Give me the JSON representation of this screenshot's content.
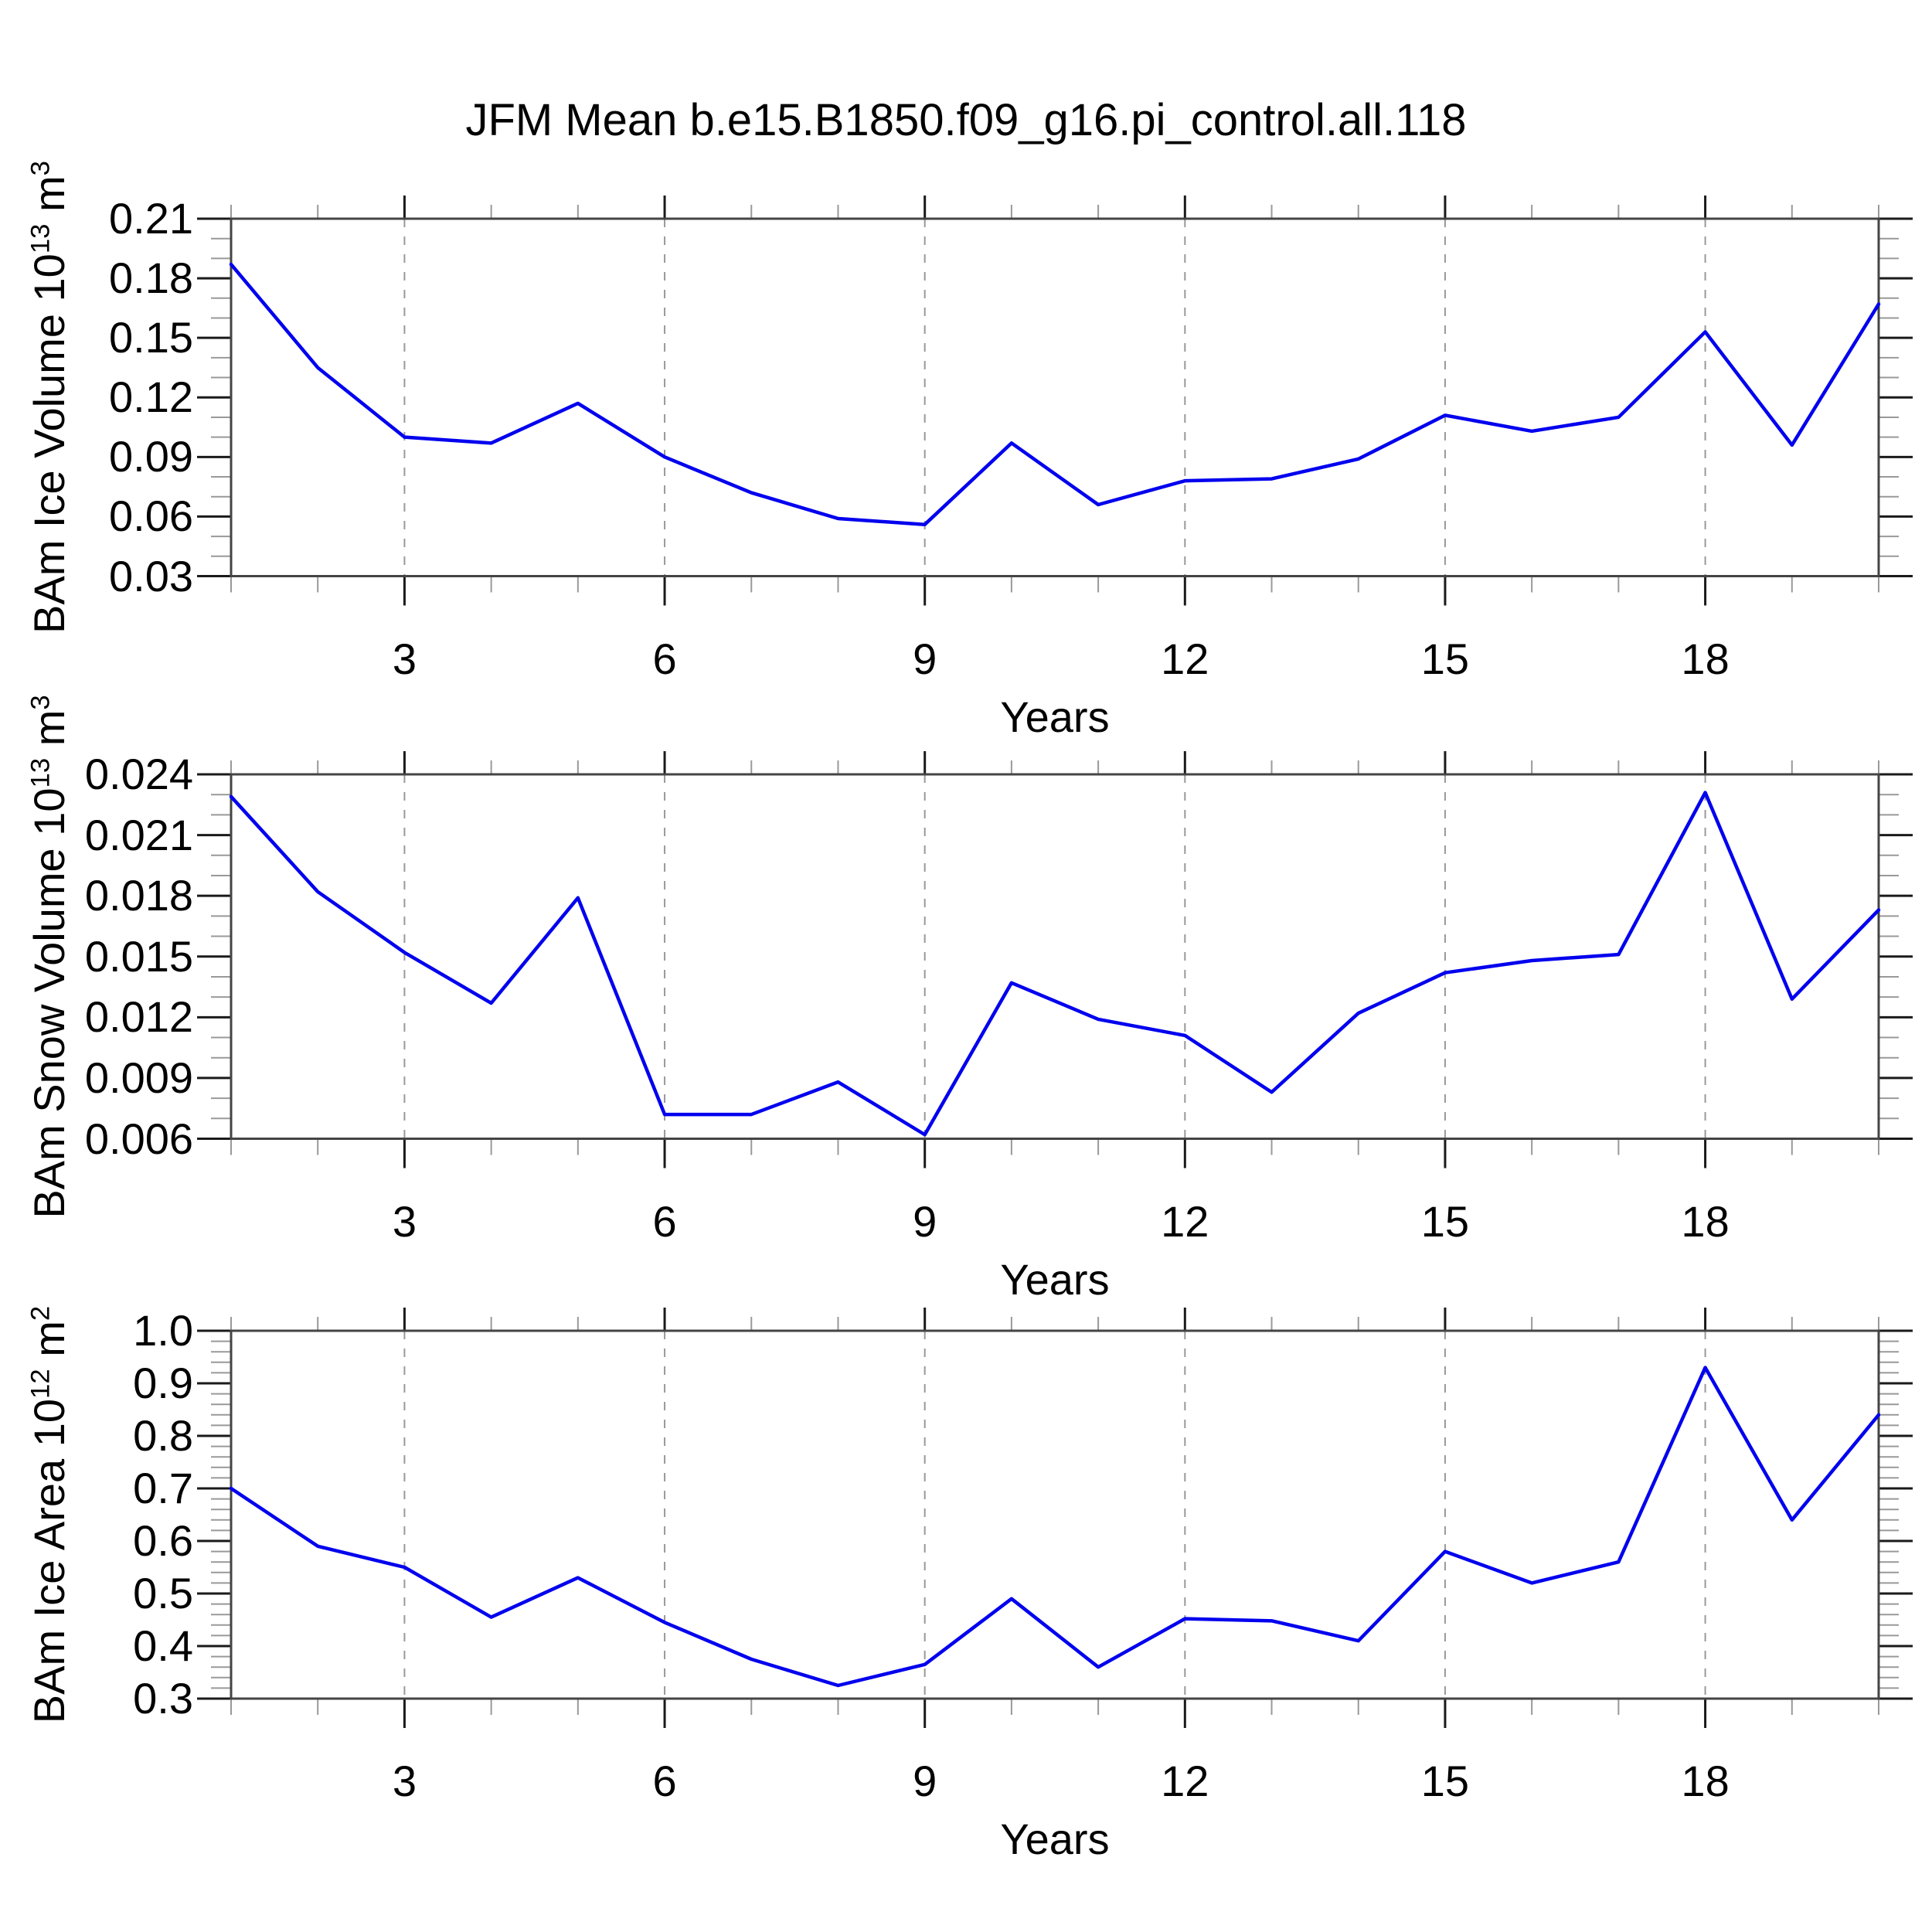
{
  "title": "JFM Mean b.e15.B1850.f09_g16.pi_control.all.118",
  "colors": {
    "line": "#0000ee",
    "frame": "#444444",
    "grid_dashed": "#999999",
    "tick_major": "#1a1a1a",
    "tick_minor": "#999999",
    "text": "#000000",
    "background": "#ffffff"
  },
  "chart_data": [
    {
      "type": "line",
      "ylabel": "BAm Ice Volume 10^13 m^3",
      "ylabel_parts": {
        "prefix": "BAm Ice Volume 10",
        "sup1": "13",
        "mid": " m",
        "sup2": "3"
      },
      "xlabel": "Years",
      "x": [
        1,
        2,
        3,
        4,
        5,
        6,
        7,
        8,
        9,
        10,
        11,
        12,
        13,
        14,
        15,
        16,
        17,
        18,
        19,
        20
      ],
      "values": [
        0.187,
        0.135,
        0.1,
        0.097,
        0.117,
        0.09,
        0.072,
        0.059,
        0.056,
        0.097,
        0.066,
        0.078,
        0.079,
        0.089,
        0.111,
        0.103,
        0.11,
        0.153,
        0.096,
        0.167
      ],
      "xlim": [
        1,
        20
      ],
      "ylim": [
        0.03,
        0.21
      ],
      "ytick_values": [
        0.21,
        0.18,
        0.15,
        0.12,
        0.09,
        0.06,
        0.03
      ],
      "ytick_labels": [
        "0.21",
        "0.18",
        "0.15",
        "0.12",
        "0.09",
        "0.06",
        "0.03"
      ],
      "yminor_step": 0.01,
      "xtick_values": [
        3,
        6,
        9,
        12,
        15,
        18
      ],
      "xtick_labels": [
        "3",
        "6",
        "9",
        "12",
        "15",
        "18"
      ],
      "xminor_step": 1,
      "grid": "vertical dashed lines at x major ticks",
      "legend": "none"
    },
    {
      "type": "line",
      "ylabel": "BAm Snow Volume 10^13 m^3",
      "ylabel_parts": {
        "prefix": "BAm Snow Volume 10",
        "sup1": "13",
        "mid": " m",
        "sup2": "3"
      },
      "xlabel": "Years",
      "x": [
        1,
        2,
        3,
        4,
        5,
        6,
        7,
        8,
        9,
        10,
        11,
        12,
        13,
        14,
        15,
        16,
        17,
        18,
        19,
        20
      ],
      "values": [
        0.0229,
        0.0182,
        0.0152,
        0.0127,
        0.0179,
        0.0072,
        0.0072,
        0.0088,
        0.0062,
        0.0137,
        0.0119,
        0.0111,
        0.0083,
        0.0122,
        0.0142,
        0.0148,
        0.0151,
        0.0231,
        0.0129,
        0.0173
      ],
      "xlim": [
        1,
        20
      ],
      "ylim": [
        0.006,
        0.024
      ],
      "ytick_values": [
        0.024,
        0.021,
        0.018,
        0.015,
        0.012,
        0.009,
        0.006
      ],
      "ytick_labels": [
        "0.024",
        "0.021",
        "0.018",
        "0.015",
        "0.012",
        "0.009",
        "0.006"
      ],
      "yminor_step": 0.001,
      "xtick_values": [
        3,
        6,
        9,
        12,
        15,
        18
      ],
      "xtick_labels": [
        "3",
        "6",
        "9",
        "12",
        "15",
        "18"
      ],
      "xminor_step": 1,
      "grid": "vertical dashed lines at x major ticks",
      "legend": "none"
    },
    {
      "type": "line",
      "ylabel": "BAm Ice Area 10^12 m^2",
      "ylabel_parts": {
        "prefix": "BAm Ice Area 10",
        "sup1": "12",
        "mid": " m",
        "sup2": "2"
      },
      "xlabel": "Years",
      "x": [
        1,
        2,
        3,
        4,
        5,
        6,
        7,
        8,
        9,
        10,
        11,
        12,
        13,
        14,
        15,
        16,
        17,
        18,
        19,
        20
      ],
      "values": [
        0.7,
        0.59,
        0.55,
        0.455,
        0.53,
        0.445,
        0.375,
        0.325,
        0.365,
        0.49,
        0.36,
        0.452,
        0.448,
        0.41,
        0.58,
        0.52,
        0.56,
        0.93,
        0.64,
        0.84
      ],
      "xlim": [
        1,
        20
      ],
      "ylim": [
        0.3,
        1.0
      ],
      "ytick_values": [
        1.0,
        0.9,
        0.8,
        0.7,
        0.6,
        0.5,
        0.4,
        0.3
      ],
      "ytick_labels": [
        "1.0",
        "0.9",
        "0.8",
        "0.7",
        "0.6",
        "0.5",
        "0.4",
        "0.3"
      ],
      "yminor_step": 0.02,
      "xtick_values": [
        3,
        6,
        9,
        12,
        15,
        18
      ],
      "xtick_labels": [
        "3",
        "6",
        "9",
        "12",
        "15",
        "18"
      ],
      "xminor_step": 1,
      "grid": "vertical dashed lines at x major ticks",
      "legend": "none"
    }
  ]
}
